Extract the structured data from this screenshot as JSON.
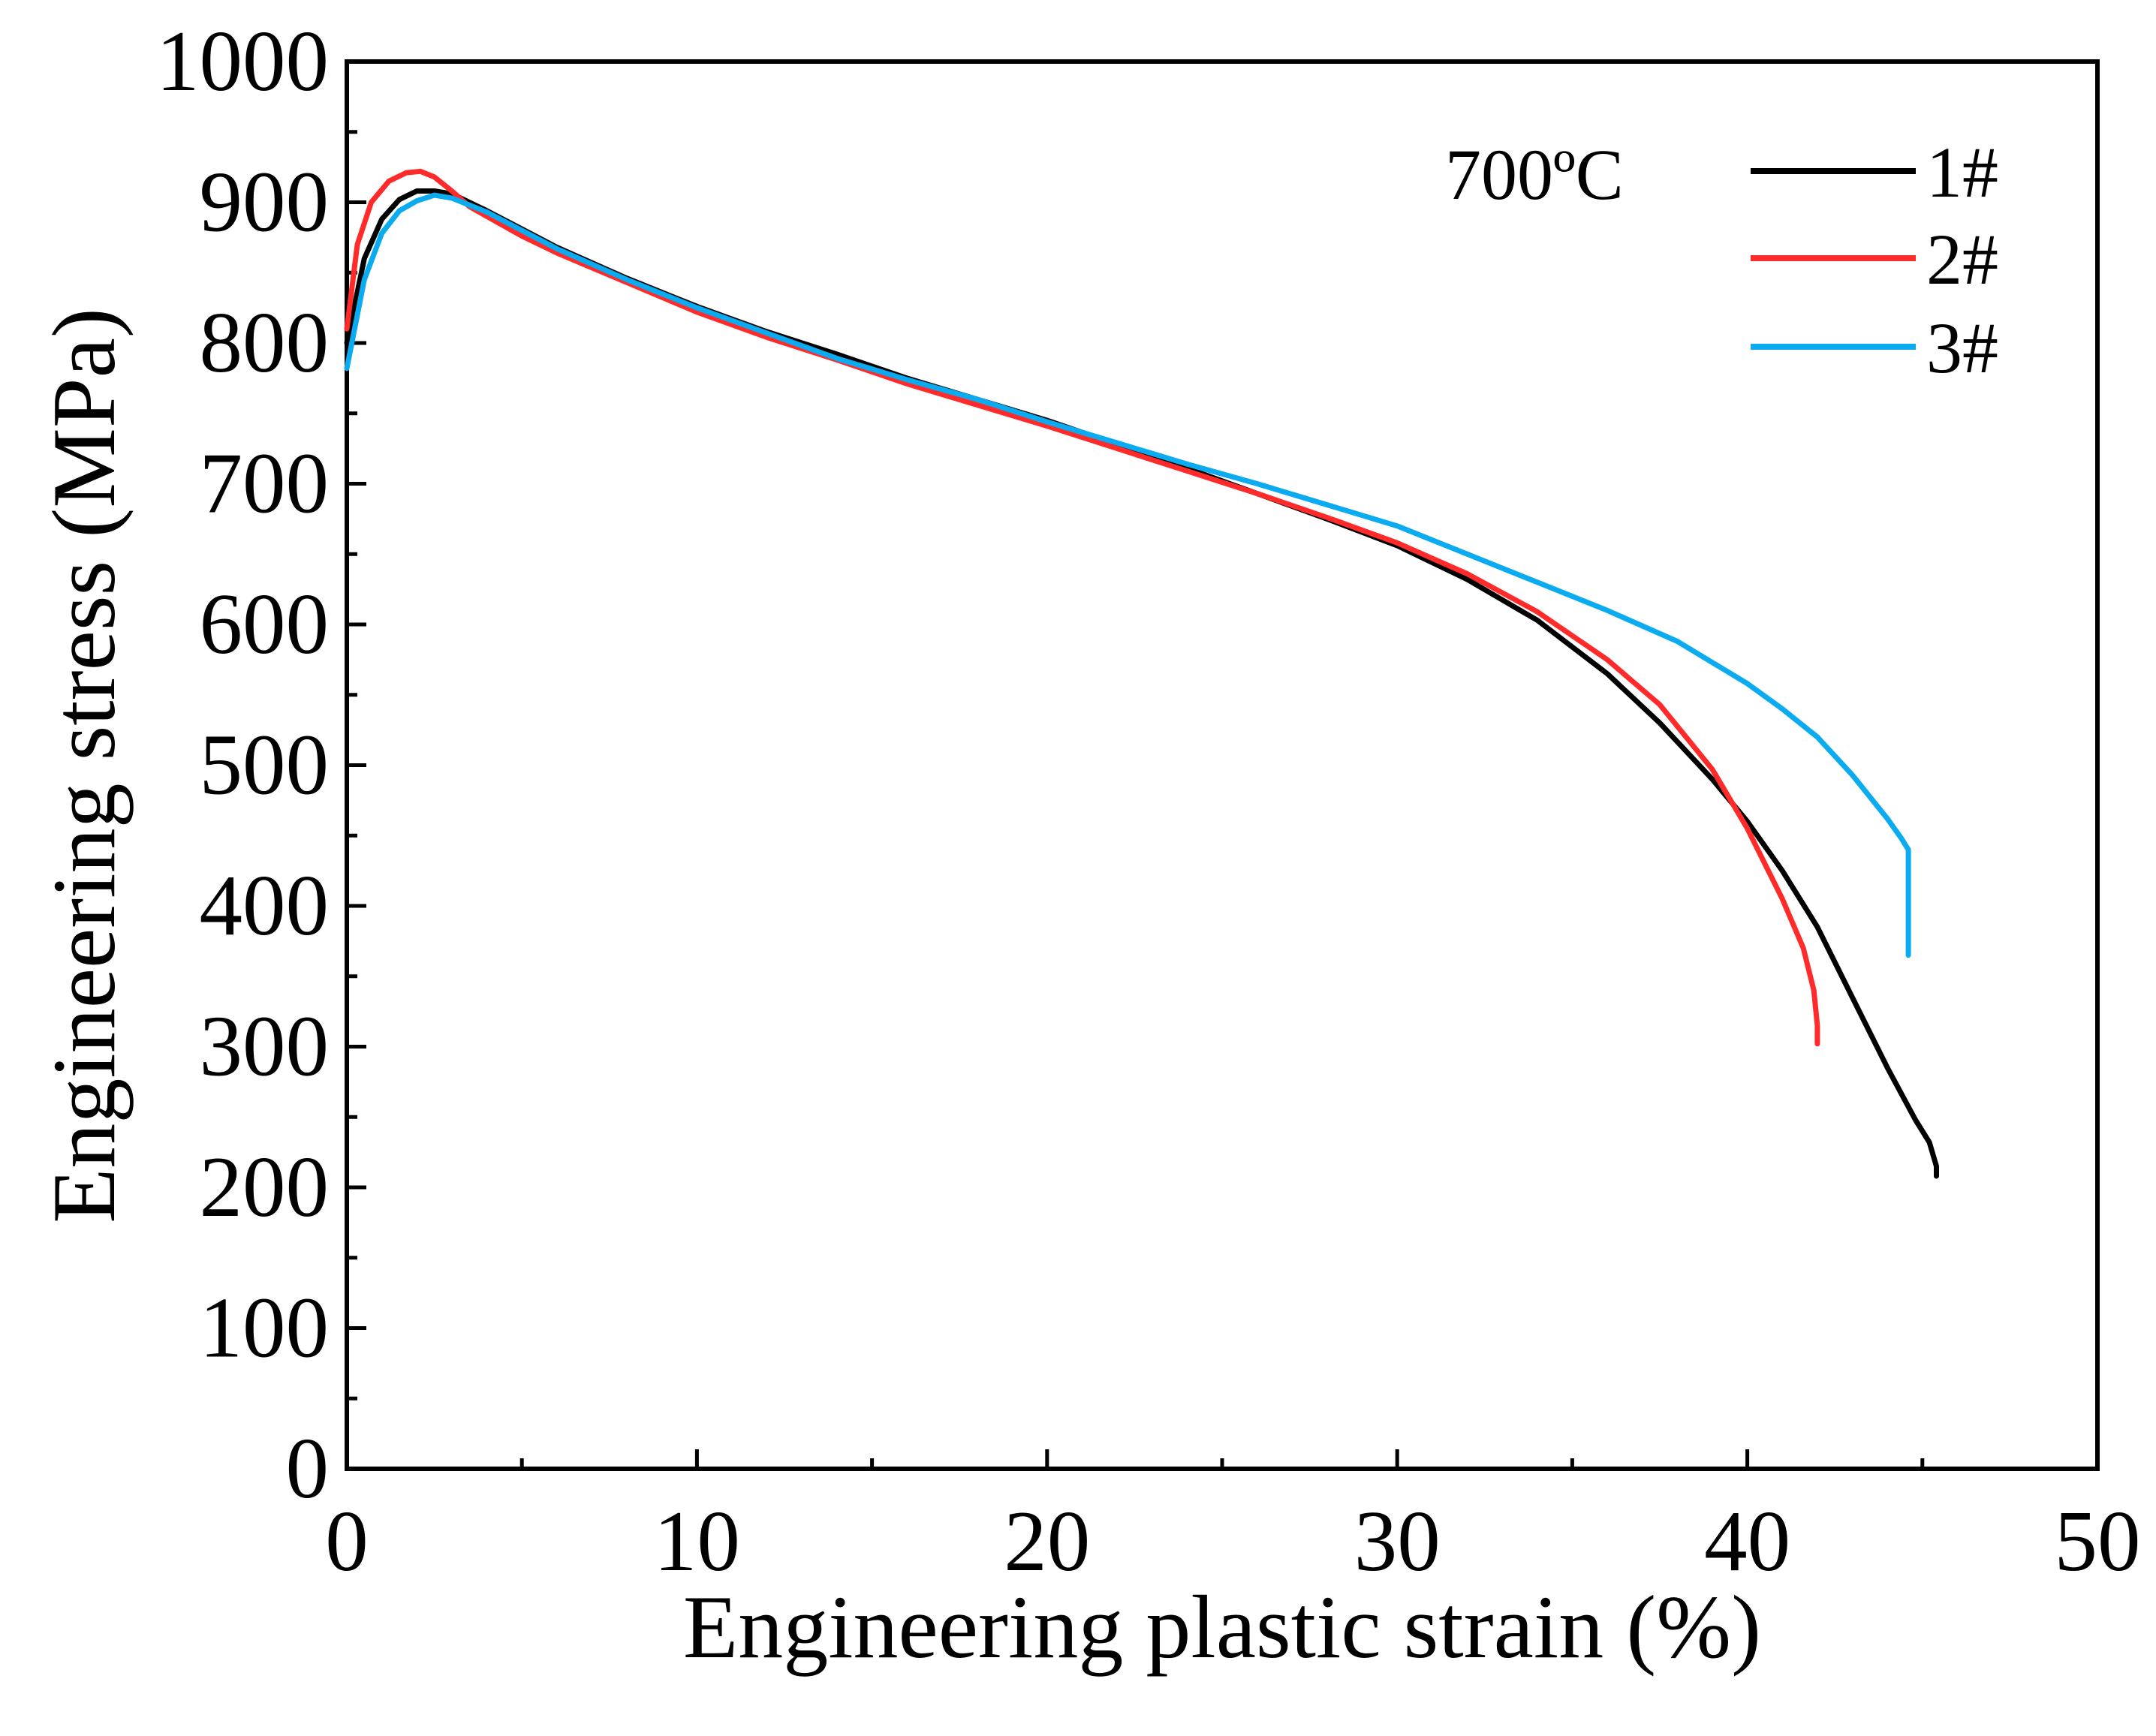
{
  "chart_data": {
    "type": "line",
    "title": "",
    "annotation": "700ºC",
    "xlabel": "Engineering plastic strain (%)",
    "ylabel": "Engineering stress (MPa)",
    "xlim": [
      0,
      50
    ],
    "ylim": [
      0,
      1000
    ],
    "x_ticks": [
      "0",
      "10",
      "20",
      "30",
      "40",
      "50"
    ],
    "y_ticks": [
      "0",
      "100",
      "200",
      "300",
      "400",
      "500",
      "600",
      "700",
      "800",
      "900",
      "1000"
    ],
    "grid": false,
    "legend_position": "top-right",
    "series": [
      {
        "name": "1#",
        "color": "#000000",
        "x": [
          0,
          0.5,
          1.0,
          1.5,
          2.0,
          2.5,
          3.0,
          4,
          5,
          6,
          8,
          10,
          12,
          14,
          16,
          18,
          20,
          22,
          24,
          26,
          28,
          30,
          32,
          34,
          36,
          37.5,
          39,
          40,
          41,
          42,
          43,
          44,
          44.8,
          45.2,
          45.4,
          45.4
        ],
        "y": [
          800,
          860,
          888,
          902,
          908,
          908,
          906,
          894,
          881,
          868,
          846,
          826,
          808,
          792,
          775,
          760,
          745,
          728,
          711,
          693,
          675,
          656,
          632,
          603,
          565,
          530,
          490,
          460,
          425,
          385,
          335,
          285,
          248,
          232,
          215,
          208
        ]
      },
      {
        "name": "2#",
        "color": "#ff2b2b",
        "x": [
          0,
          0.3,
          0.7,
          1.2,
          1.7,
          2.1,
          2.5,
          3.0,
          3.5,
          4,
          5,
          6,
          8,
          10,
          12,
          14,
          16,
          18,
          20,
          22,
          24,
          26,
          28,
          30,
          32,
          34,
          36,
          37.5,
          39,
          40,
          41,
          41.6,
          41.9,
          42.0,
          42.0
        ],
        "y": [
          810,
          870,
          900,
          915,
          921,
          922,
          918,
          908,
          897,
          890,
          876,
          864,
          843,
          822,
          804,
          788,
          771,
          756,
          741,
          725,
          709,
          693,
          676,
          658,
          636,
          609,
          575,
          543,
          497,
          455,
          405,
          370,
          340,
          315,
          302
        ]
      },
      {
        "name": "3#",
        "color": "#0aabf0",
        "x": [
          0,
          0.5,
          1.0,
          1.5,
          2.0,
          2.5,
          3.0,
          4,
          5,
          6,
          8,
          10,
          12,
          14,
          16,
          18,
          20,
          22,
          24,
          26,
          28,
          30,
          32,
          34,
          36,
          38,
          40,
          41,
          42,
          43,
          44,
          44.4,
          44.6,
          44.6,
          44.6
        ],
        "y": [
          782,
          845,
          878,
          894,
          901,
          905,
          903,
          893,
          880,
          867,
          845,
          825,
          807,
          789,
          774,
          760,
          744,
          729,
          714,
          700,
          685,
          670,
          650,
          630,
          610,
          588,
          558,
          540,
          520,
          493,
          462,
          448,
          440,
          400,
          365
        ]
      }
    ]
  }
}
